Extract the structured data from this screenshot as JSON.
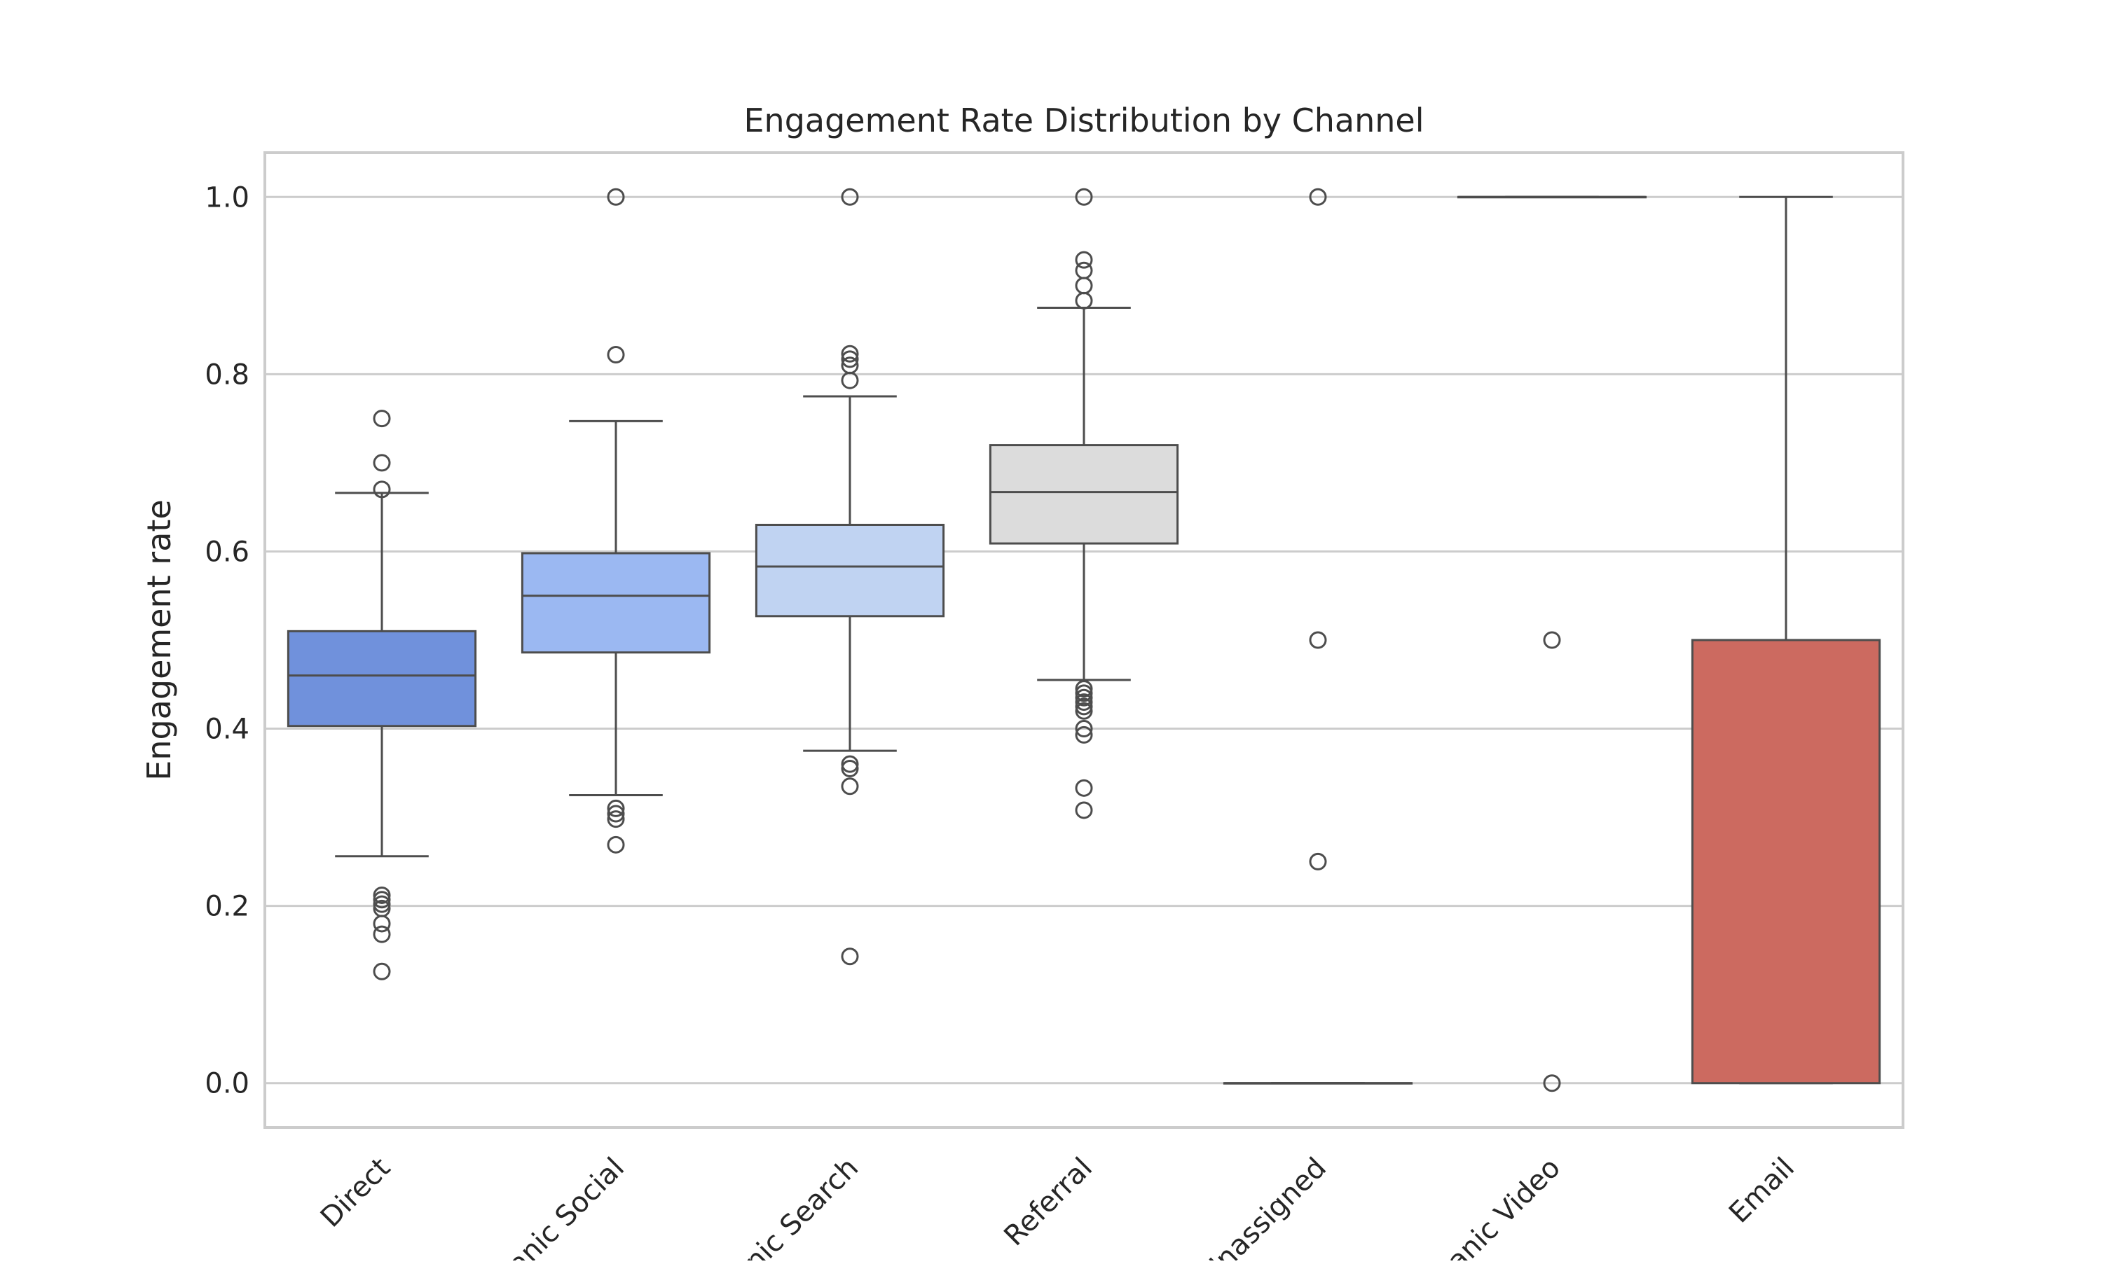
{
  "chart_data": {
    "type": "box",
    "title": "Engagement Rate Distribution by Channel",
    "xlabel": "",
    "ylabel": "Engagement rate",
    "ylim": [
      -0.05,
      1.05
    ],
    "yticks": [
      0.0,
      0.2,
      0.4,
      0.6,
      0.8,
      1.0
    ],
    "ytick_labels": [
      "0.0",
      "0.2",
      "0.4",
      "0.6",
      "0.8",
      "1.0"
    ],
    "grid": true,
    "legend": "none",
    "categories": [
      "Direct",
      "Organic Social",
      "Organic Search",
      "Referral",
      "Unassigned",
      "Organic Video",
      "Email"
    ],
    "xtick_labels_visible": [
      "Direct",
      "anic Social",
      "nic Search",
      "Referral",
      "Unassigned",
      "anic Video",
      "Email"
    ],
    "boxes": [
      {
        "category": "Direct",
        "q1": 0.403,
        "median": 0.46,
        "q3": 0.51,
        "whislo": 0.256,
        "whishi": 0.666,
        "color": "#7091dc",
        "fliers": [
          0.75,
          0.7,
          0.67,
          0.212,
          0.207,
          0.202,
          0.197,
          0.18,
          0.168,
          0.126
        ]
      },
      {
        "category": "Organic Social",
        "q1": 0.486,
        "median": 0.55,
        "q3": 0.598,
        "whislo": 0.325,
        "whishi": 0.747,
        "color": "#9bb8f2",
        "fliers": [
          1.0,
          0.822,
          0.31,
          0.304,
          0.298,
          0.269
        ]
      },
      {
        "category": "Organic Search",
        "q1": 0.527,
        "median": 0.583,
        "q3": 0.63,
        "whislo": 0.375,
        "whishi": 0.775,
        "color": "#c0d3f2",
        "fliers": [
          1.0,
          0.823,
          0.817,
          0.81,
          0.793,
          0.36,
          0.355,
          0.335,
          0.143
        ]
      },
      {
        "category": "Referral",
        "q1": 0.609,
        "median": 0.667,
        "q3": 0.72,
        "whislo": 0.455,
        "whishi": 0.875,
        "color": "#dcdcdc",
        "fliers": [
          1.0,
          0.929,
          0.917,
          0.9,
          0.883,
          0.445,
          0.44,
          0.435,
          0.43,
          0.425,
          0.42,
          0.4,
          0.393,
          0.333,
          0.308
        ]
      },
      {
        "category": "Unassigned",
        "q1": 0.0,
        "median": 0.0,
        "q3": 0.0,
        "whislo": 0.0,
        "whishi": 0.0,
        "color": "#e9d2c6",
        "fliers": [
          1.0,
          0.5,
          0.25
        ]
      },
      {
        "category": "Organic Video",
        "q1": 1.0,
        "median": 1.0,
        "q3": 1.0,
        "whislo": 1.0,
        "whishi": 1.0,
        "color": "#eeb097",
        "fliers": [
          0.5,
          0.0
        ]
      },
      {
        "category": "Email",
        "q1": 0.0,
        "median": 0.5,
        "q3": 0.5,
        "whislo": 0.0,
        "whishi": 1.0,
        "color": "#cc6a60",
        "fliers": []
      }
    ]
  }
}
